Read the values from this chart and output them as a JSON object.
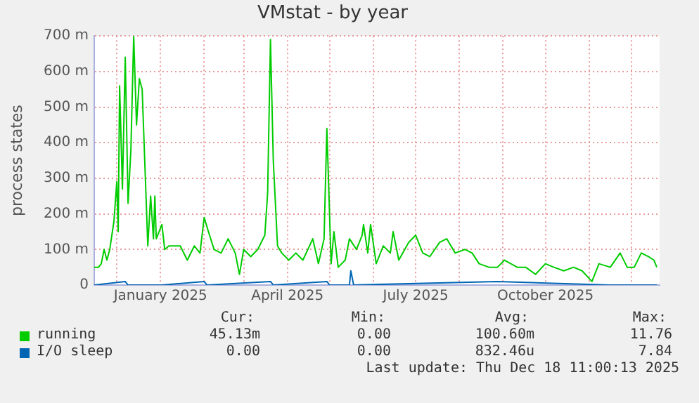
{
  "chart_data": {
    "type": "line",
    "title": "VMstat - by year",
    "ylabel": "process states",
    "xlim": [
      "2024-11-15",
      "2025-12-21"
    ],
    "xticks": [
      {
        "value": "2024-12-01",
        "label": null
      },
      {
        "value": "2025-01-01",
        "label": "January 2025"
      },
      {
        "value": "2025-02-01",
        "label": null
      },
      {
        "value": "2025-03-01",
        "label": null
      },
      {
        "value": "2025-04-01",
        "label": "April 2025"
      },
      {
        "value": "2025-05-01",
        "label": null
      },
      {
        "value": "2025-06-01",
        "label": null
      },
      {
        "value": "2025-07-01",
        "label": "July 2025"
      },
      {
        "value": "2025-08-01",
        "label": null
      },
      {
        "value": "2025-09-01",
        "label": null
      },
      {
        "value": "2025-10-01",
        "label": "October 2025"
      },
      {
        "value": "2025-11-01",
        "label": null
      },
      {
        "value": "2025-12-01",
        "label": null
      }
    ],
    "ylim": [
      0,
      700
    ],
    "yticks": [
      0,
      {
        "value": 100,
        "label": "100 m"
      },
      {
        "value": 200,
        "label": "200 m"
      },
      {
        "value": 300,
        "label": "300 m"
      },
      {
        "value": 400,
        "label": "400 m"
      },
      {
        "value": 500,
        "label": "500 m"
      },
      {
        "value": 600,
        "label": "600 m"
      },
      {
        "value": 700,
        "label": "700 m"
      }
    ],
    "grid": true,
    "legend": "bottom",
    "marker": "none",
    "line_style": "solid",
    "series": [
      {
        "name": "running",
        "color": "#00cc00",
        "x": [
          "2024-11-15",
          "2024-11-18",
          "2024-11-20",
          "2024-11-22",
          "2024-11-24",
          "2024-11-26",
          "2024-11-29",
          "2024-12-01",
          "2024-12-02",
          "2024-12-03",
          "2024-12-05",
          "2024-12-07",
          "2024-12-09",
          "2024-12-11",
          "2024-12-13",
          "2024-12-15",
          "2024-12-17",
          "2024-12-19",
          "2024-12-21",
          "2024-12-23",
          "2024-12-25",
          "2024-12-27",
          "2024-12-28",
          "2024-12-29",
          "2025-01-02",
          "2025-01-04",
          "2025-01-07",
          "2025-01-11",
          "2025-01-15",
          "2025-01-20",
          "2025-01-25",
          "2025-01-29",
          "2025-02-01",
          "2025-02-04",
          "2025-02-08",
          "2025-02-13",
          "2025-02-18",
          "2025-02-23",
          "2025-02-26",
          "2025-03-01",
          "2025-03-06",
          "2025-03-11",
          "2025-03-16",
          "2025-03-18",
          "2025-03-20",
          "2025-03-22",
          "2025-03-25",
          "2025-03-28",
          "2025-04-02",
          "2025-04-07",
          "2025-04-12",
          "2025-04-19",
          "2025-04-23",
          "2025-04-27",
          "2025-04-29",
          "2025-05-02",
          "2025-05-04",
          "2025-05-07",
          "2025-05-12",
          "2025-05-15",
          "2025-05-20",
          "2025-05-24",
          "2025-05-25",
          "2025-05-28",
          "2025-05-30",
          "2025-06-03",
          "2025-06-08",
          "2025-06-13",
          "2025-06-15",
          "2025-06-19",
          "2025-06-26",
          "2025-07-01",
          "2025-07-06",
          "2025-07-11",
          "2025-07-18",
          "2025-07-23",
          "2025-07-29",
          "2025-08-05",
          "2025-08-10",
          "2025-08-15",
          "2025-08-22",
          "2025-08-28",
          "2025-09-02",
          "2025-09-11",
          "2025-09-17",
          "2025-09-24",
          "2025-10-01",
          "2025-10-07",
          "2025-10-14",
          "2025-10-21",
          "2025-10-27",
          "2025-11-03",
          "2025-11-08",
          "2025-11-16",
          "2025-11-23",
          "2025-11-28",
          "2025-12-03",
          "2025-12-08",
          "2025-12-13",
          "2025-12-17",
          "2025-12-19"
        ],
        "values": [
          50,
          50,
          60,
          100,
          70,
          100,
          180,
          290,
          150,
          560,
          270,
          640,
          230,
          380,
          700,
          450,
          580,
          550,
          330,
          110,
          250,
          130,
          250,
          130,
          170,
          100,
          110,
          110,
          110,
          70,
          110,
          90,
          190,
          150,
          100,
          90,
          130,
          90,
          30,
          100,
          80,
          100,
          140,
          260,
          690,
          350,
          110,
          90,
          70,
          90,
          70,
          130,
          60,
          130,
          440,
          60,
          150,
          50,
          70,
          130,
          100,
          140,
          170,
          90,
          170,
          60,
          110,
          90,
          150,
          70,
          120,
          140,
          90,
          80,
          120,
          130,
          90,
          100,
          90,
          60,
          50,
          50,
          70,
          50,
          50,
          30,
          60,
          50,
          40,
          50,
          40,
          10,
          60,
          50,
          90,
          50,
          50,
          90,
          80,
          70,
          50
        ]
      },
      {
        "name": "I/O sleep",
        "color": "#0066b3",
        "x": [
          "2024-11-15",
          "2024-12-07",
          "2024-12-09",
          "2025-01-02",
          "2025-02-01",
          "2025-02-03",
          "2025-03-20",
          "2025-03-22",
          "2025-04-29",
          "2025-05-01",
          "2025-05-15",
          "2025-05-16",
          "2025-05-18",
          "2025-08-28",
          "2025-11-16",
          "2025-12-19"
        ],
        "values": [
          0,
          10,
          0,
          0,
          10,
          0,
          10,
          0,
          10,
          0,
          0,
          40,
          0,
          10,
          0,
          0
        ]
      }
    ],
    "annotations": [
      "Cur:",
      "Min:",
      "Avg:",
      "Max:",
      "45.13m",
      "0.00",
      "100.60m",
      "11.76",
      "0.00",
      "0.00",
      "832.46u",
      "7.84",
      "Last update: Thu Dec 18 11:00:13 2025"
    ]
  }
}
